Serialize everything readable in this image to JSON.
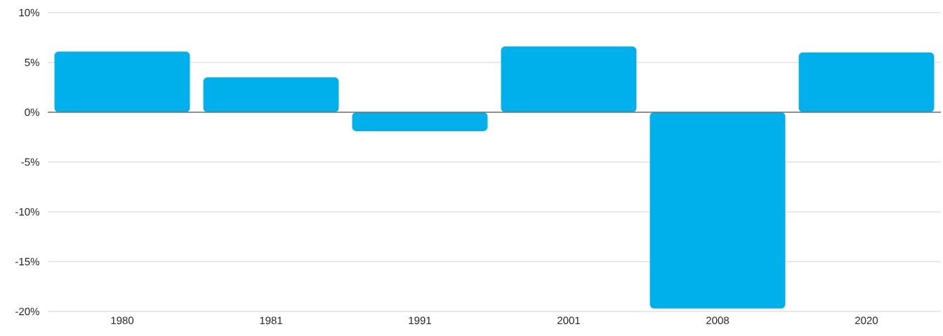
{
  "chart_data": {
    "type": "bar",
    "categories": [
      "1980",
      "1981",
      "1991",
      "2001",
      "2008",
      "2020"
    ],
    "values": [
      6.1,
      3.5,
      -1.9,
      6.6,
      -19.7,
      6.0
    ],
    "color": "#00b0ea",
    "ylim": [
      -20,
      10
    ],
    "yticks": [
      {
        "value": -20,
        "label": "-20%"
      },
      {
        "value": -15,
        "label": "-15%"
      },
      {
        "value": -10,
        "label": "-10%"
      },
      {
        "value": -5,
        "label": "-5%"
      },
      {
        "value": 0,
        "label": "0%"
      },
      {
        "value": 5,
        "label": "5%"
      },
      {
        "value": 10,
        "label": "10%"
      }
    ],
    "grid": "y"
  }
}
